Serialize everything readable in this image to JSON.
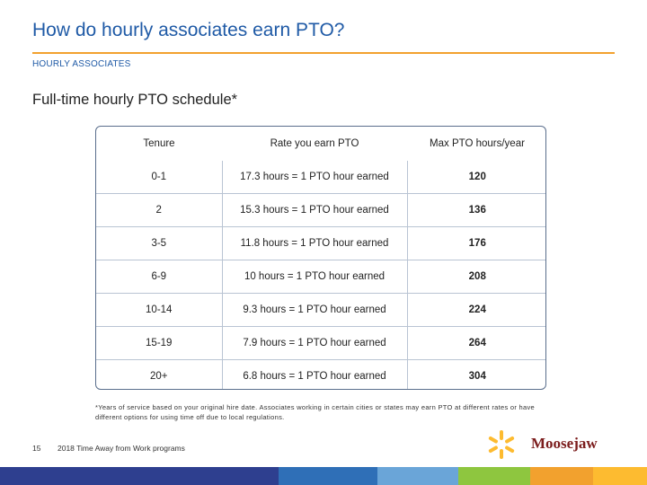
{
  "header": {
    "title": "How do hourly associates earn PTO?",
    "subheading": "HOURLY ASSOCIATES"
  },
  "section": {
    "title": "Full-time hourly PTO schedule*"
  },
  "table": {
    "headers": [
      "Tenure",
      "Rate you earn PTO",
      "Max PTO hours/year"
    ],
    "rows": [
      [
        "0-1",
        "17.3 hours = 1 PTO hour earned",
        "120"
      ],
      [
        "2",
        "15.3 hours = 1 PTO hour earned",
        "136"
      ],
      [
        "3-5",
        "11.8 hours = 1 PTO hour earned",
        "176"
      ],
      [
        "6-9",
        "10 hours = 1 PTO hour earned",
        "208"
      ],
      [
        "10-14",
        "9.3 hours = 1 PTO hour earned",
        "224"
      ],
      [
        "15-19",
        "7.9 hours = 1 PTO hour earned",
        "264"
      ],
      [
        "20+",
        "6.8 hours = 1 PTO hour earned",
        "304"
      ]
    ]
  },
  "footnote": "*Years of service based on your original hire date. Associates working in certain cities or states may earn PTO at different rates or have different options for using time off due to local regulations.",
  "footer": {
    "page_number": "15",
    "text": "2018 Time Away from Work programs"
  },
  "logo": {
    "brand_text": "Moosejaw",
    "icon": "walmart-spark-icon"
  },
  "colors": {
    "title": "#1f5aa6",
    "rule": "#f2a12e",
    "spark": "#fdbb30",
    "brand": "#7b1c1c",
    "bar_segments": [
      "#2e3f8f",
      "#2f6fb7",
      "#6aa5d8",
      "#8ec63f",
      "#f2a12e",
      "#fdbb30"
    ]
  }
}
